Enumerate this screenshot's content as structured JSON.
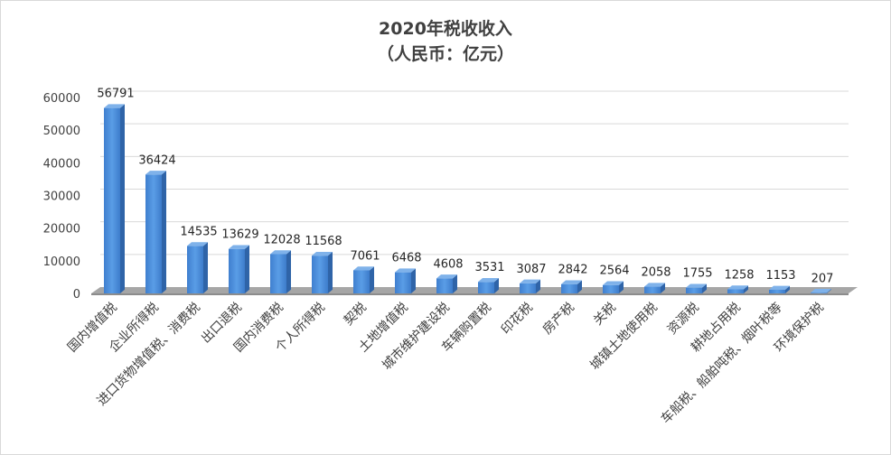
{
  "chart_data": {
    "type": "bar",
    "title": "2020年税收收入",
    "subtitle": "（人民币：亿元）",
    "categories": [
      "国内增值税",
      "企业所得税",
      "进口货物增值税、消费税",
      "出口退税",
      "国内消费税",
      "个人所得税",
      "契税",
      "土地增值税",
      "城市维护建设税",
      "车辆购置税",
      "印花税",
      "房产税",
      "关税",
      "城镇土地使用税",
      "资源税",
      "耕地占用税",
      "车船税、船舶吨税、烟叶税等",
      "环境保护税"
    ],
    "values": [
      56791,
      36424,
      14535,
      13629,
      12028,
      11568,
      7061,
      6468,
      4608,
      3531,
      3087,
      2842,
      2564,
      2058,
      1755,
      1258,
      1153,
      207
    ],
    "data_labels": [
      "56791",
      "36424",
      "14535",
      "13629",
      "12028",
      "11568",
      "7061",
      "6468",
      "4608",
      "3531",
      "3087",
      "2842",
      "2564",
      "2058",
      "1755",
      "1258",
      "1153",
      "207"
    ],
    "yticks": [
      "0",
      "10000",
      "20000",
      "30000",
      "40000",
      "50000",
      "60000"
    ],
    "ylim": [
      0,
      60000
    ],
    "grid": true,
    "legend": false,
    "style": "3d-column",
    "colors": {
      "bar_front": "#4a8fdb",
      "bar_side": "#2f64a8",
      "bar_top": "#7fb2ea",
      "floor": "#a6a6a6",
      "grid": "#d9d9d9"
    }
  }
}
